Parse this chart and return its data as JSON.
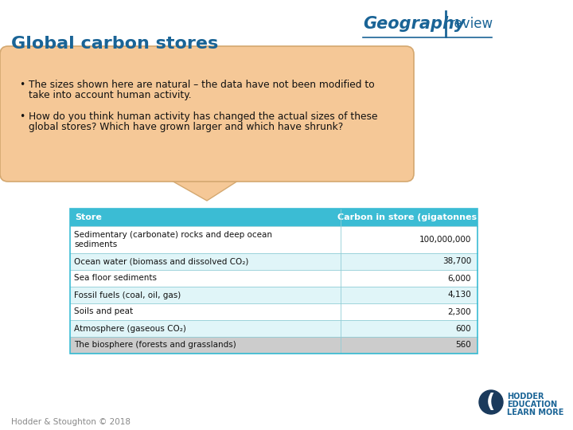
{
  "title": "Global carbon stores",
  "title_color": "#1A6496",
  "title_fontsize": 16,
  "bg_color": "#FFFFFF",
  "bullet_box_color": "#F5C897",
  "bullet_box_edge_color": "#D4A870",
  "bullet1_line1": "The sizes shown here are natural – the data have not been modified to",
  "bullet1_line2": "take into account human activity.",
  "bullet2_line1": "How do you think human activity has changed the actual sizes of these",
  "bullet2_line2": "global stores? Which have grown larger and which have shrunk?",
  "table_header": [
    "Store",
    "Carbon in store (gigatonnes)"
  ],
  "table_header_bg": "#3BBCD4",
  "table_header_color": "#FFFFFF",
  "table_rows": [
    [
      "Sedimentary (carbonate) rocks and deep ocean\nsediments",
      "100,000,000"
    ],
    [
      "Ocean water (biomass and dissolved CO₂)",
      "38,700"
    ],
    [
      "Sea floor sediments",
      "6,000"
    ],
    [
      "Fossil fuels (coal, oil, gas)",
      "4,130"
    ],
    [
      "Soils and peat",
      "2,300"
    ],
    [
      "Atmosphere (gaseous CO₂)",
      "600"
    ],
    [
      "The biosphere (forests and grasslands)",
      "560"
    ]
  ],
  "table_row_colors": [
    "#FFFFFF",
    "#E0F5F8",
    "#FFFFFF",
    "#E0F5F8",
    "#FFFFFF",
    "#E0F5F8",
    "#CCCCCC"
  ],
  "footer_text": "Hodder & Stoughton © 2018",
  "footer_color": "#888888",
  "geo_blue": "#1A6496",
  "geo_orange": "#E07820"
}
